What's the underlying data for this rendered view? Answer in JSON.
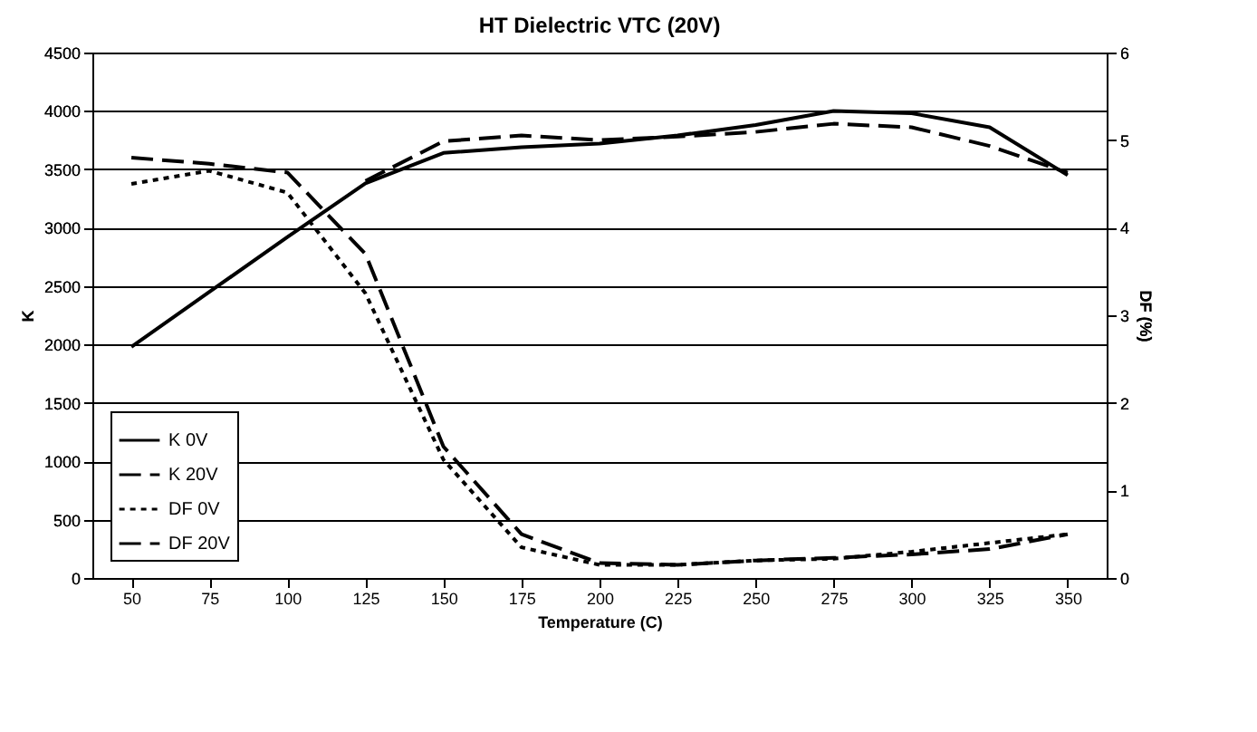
{
  "chart_data": {
    "type": "line",
    "title": "HT Dielectric VTC (20V)",
    "xlabel": "Temperature (C)",
    "ylabel": "K",
    "y2label": "DF (%)",
    "categories": [
      "50",
      "75",
      "100",
      "125",
      "150",
      "175",
      "200",
      "225",
      "250",
      "275",
      "300",
      "325",
      "350"
    ],
    "series": [
      {
        "name": "K  0V",
        "color": "#000000",
        "line_style": "solid",
        "values": [
          1980,
          2450,
          2920,
          3380,
          3640,
          3690,
          3720,
          3790,
          3880,
          4000,
          3980,
          3860,
          3450
        ]
      },
      {
        "name": "K 20V",
        "color": "#000000",
        "line_style": "dashed",
        "values": [
          null,
          null,
          null,
          3400,
          3740,
          3790,
          3750,
          3780,
          3820,
          3890,
          3860,
          3700,
          3470
        ]
      },
      {
        "name": "DF 0V",
        "color": "#000000",
        "line_style": "dotted",
        "axis": "y2",
        "values": [
          4.5,
          4.65,
          4.4,
          3.25,
          1.35,
          0.35,
          0.15,
          0.15,
          0.2,
          0.22,
          0.3,
          0.4,
          0.5
        ]
      },
      {
        "name": "DF 20V",
        "color": "#000000",
        "line_style": "dashed",
        "axis": "y2",
        "values": [
          4.8,
          4.73,
          4.63,
          3.7,
          1.5,
          0.5,
          0.17,
          0.15,
          0.2,
          0.23,
          0.27,
          0.33,
          0.5
        ]
      }
    ],
    "ylim": [
      0,
      4500
    ],
    "yticks": [
      0,
      500,
      1000,
      1500,
      2000,
      2500,
      3000,
      3500,
      4000,
      4500
    ],
    "y2lim": [
      0,
      6
    ],
    "y2ticks": [
      0,
      1,
      2,
      3,
      4,
      5,
      6
    ],
    "grid": "y",
    "legend": "bottom left"
  }
}
